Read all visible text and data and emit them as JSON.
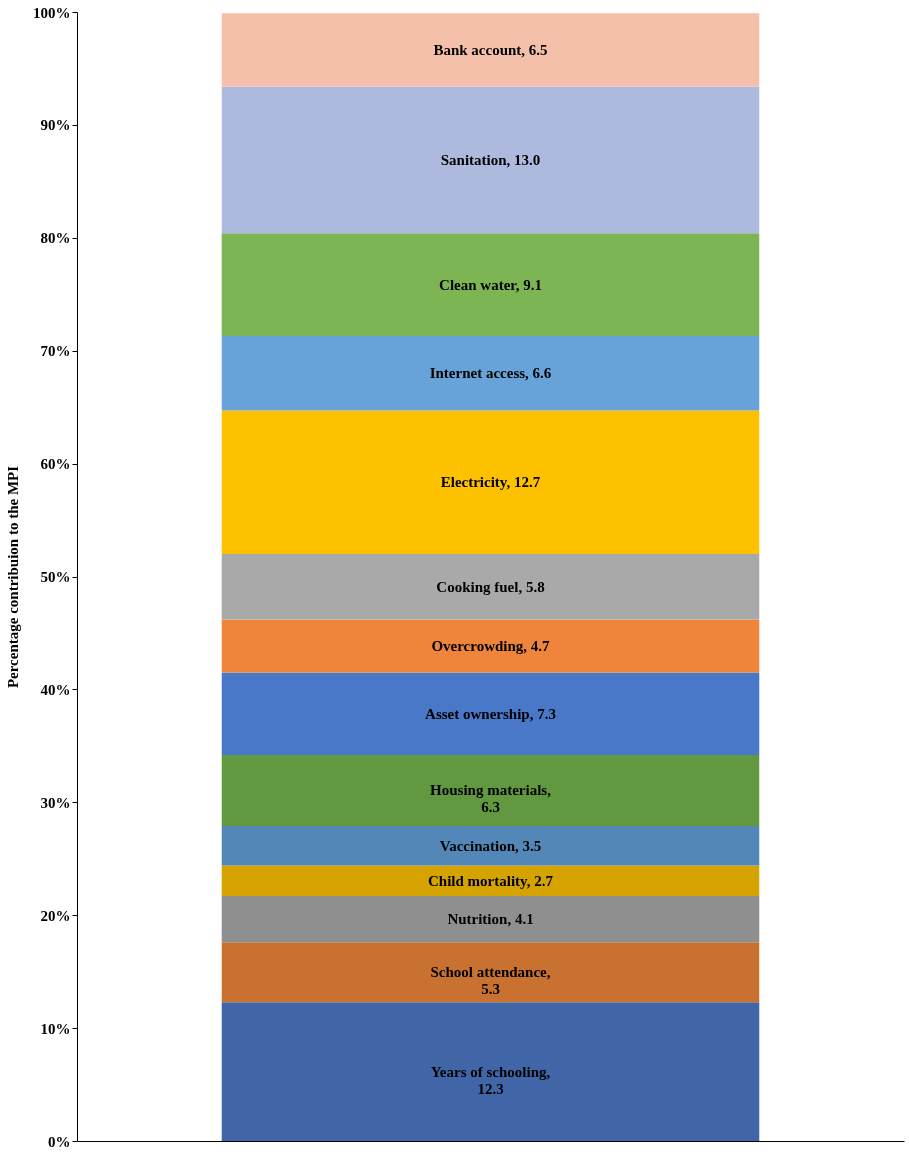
{
  "chart_data": {
    "type": "bar",
    "stacked": true,
    "ylabel": "Percentage  contribuion to the MPI",
    "categories": [
      null
    ],
    "ylim": [
      0,
      100
    ],
    "yticks": [
      {
        "value": 0,
        "label": "0%"
      },
      {
        "value": 10,
        "label": "10%"
      },
      {
        "value": 20,
        "label": "20%"
      },
      {
        "value": 30,
        "label": "30%"
      },
      {
        "value": 40,
        "label": "40%"
      },
      {
        "value": 50,
        "label": "50%"
      },
      {
        "value": 60,
        "label": "60%"
      },
      {
        "value": 70,
        "label": "70%"
      },
      {
        "value": 80,
        "label": "80%"
      },
      {
        "value": 90,
        "label": "90%"
      },
      {
        "value": 100,
        "label": "100%"
      }
    ],
    "tick_labels": "y",
    "grid": false,
    "legend": false,
    "series": [
      {
        "color": "#4166a8",
        "values": [
          12.3
        ],
        "value_labels": [
          "Years of schooling, 12.3"
        ]
      },
      {
        "color": "#c87130",
        "values": [
          5.3
        ],
        "value_labels": [
          "School attendance, 5.3"
        ]
      },
      {
        "color": "#8f8f8f",
        "values": [
          4.1
        ],
        "value_labels": [
          "Nutrition, 4.1"
        ]
      },
      {
        "color": "#d4a300",
        "values": [
          2.7
        ],
        "value_labels": [
          "Child mortality, 2.7"
        ]
      },
      {
        "color": "#5387b8",
        "values": [
          3.5
        ],
        "value_labels": [
          "Vaccination, 3.5"
        ]
      },
      {
        "color": "#629940",
        "values": [
          6.3
        ],
        "value_labels": [
          "Housing materials, 6.3"
        ]
      },
      {
        "color": "#4a78c8",
        "values": [
          7.3
        ],
        "value_labels": [
          "Asset ownership, 7.3"
        ]
      },
      {
        "color": "#ee853a",
        "values": [
          4.7
        ],
        "value_labels": [
          "Overcrowding, 4.7"
        ]
      },
      {
        "color": "#a9a9a9",
        "values": [
          5.8
        ],
        "value_labels": [
          "Cooking fuel, 5.8"
        ]
      },
      {
        "color": "#fdc100",
        "values": [
          12.7
        ],
        "value_labels": [
          "Electricity, 12.7"
        ]
      },
      {
        "color": "#67a3d9",
        "values": [
          6.6
        ],
        "value_labels": [
          "Internet access, 6.6"
        ]
      },
      {
        "color": "#7eb554",
        "values": [
          9.1
        ],
        "value_labels": [
          "Clean water, 9.1"
        ]
      },
      {
        "color": "#aeb9de",
        "values": [
          13.0
        ],
        "value_labels": [
          "Sanitation, 13.0"
        ]
      },
      {
        "color": "#f4c0aa",
        "values": [
          6.5
        ],
        "value_labels": [
          "Bank account, 6.5"
        ]
      }
    ]
  }
}
